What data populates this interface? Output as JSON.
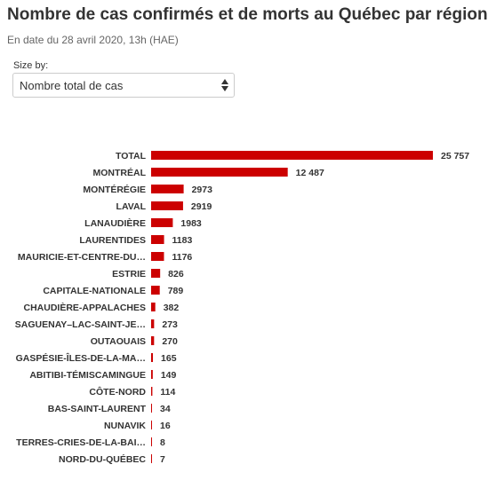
{
  "header": {
    "title": "Nombre de cas confirmés et de morts au Québec par région",
    "subtitle": "En date du 28 avril 2020, 13h (HAE)"
  },
  "controls": {
    "size_by_label": "Size by:",
    "size_by_value": "Nombre total de cas"
  },
  "colors": {
    "bar": "#cc0000"
  },
  "chart_data": {
    "type": "bar",
    "orientation": "horizontal",
    "categories": [
      "TOTAL",
      "MONTRÉAL",
      "MONTÉRÉGIE",
      "LAVAL",
      "LANAUDIÈRE",
      "LAURENTIDES",
      "MAURICIE-ET-CENTRE-DU…",
      "ESTRIE",
      "CAPITALE-NATIONALE",
      "CHAUDIÈRE-APPALACHES",
      "SAGUENAY–LAC-SAINT-JE…",
      "OUTAOUAIS",
      "GASPÉSIE-ÎLES-DE-LA-MA…",
      "ABITIBI-TÉMISCAMINGUE",
      "CÔTE-NORD",
      "BAS-SAINT-LAURENT",
      "NUNAVIK",
      "TERRES-CRIES-DE-LA-BAI…",
      "NORD-DU-QUÉBEC"
    ],
    "values": [
      25757,
      12487,
      2973,
      2919,
      1983,
      1183,
      1176,
      826,
      789,
      382,
      273,
      270,
      165,
      149,
      114,
      34,
      16,
      8,
      7
    ],
    "value_labels": [
      "25 757",
      "12 487",
      "2973",
      "2919",
      "1983",
      "1183",
      "1176",
      "826",
      "789",
      "382",
      "273",
      "270",
      "165",
      "149",
      "114",
      "34",
      "16",
      "8",
      "7"
    ],
    "xlim": [
      0,
      25757
    ],
    "grid": false,
    "legend": false
  }
}
